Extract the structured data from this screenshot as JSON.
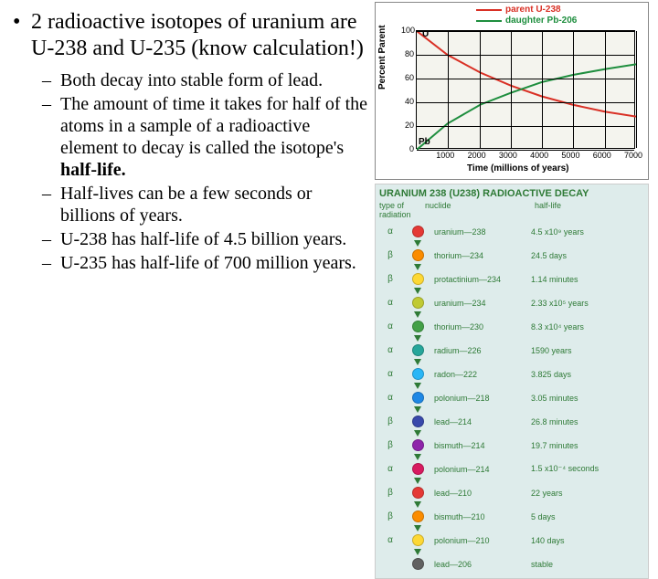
{
  "bullets": {
    "main": "2 radioactive isotopes of uranium are U-238 and U-235 (know calculation!)",
    "subs": [
      "Both decay into stable form of lead.",
      "The amount of time it takes for half of the atoms in a sample of a radioactive element to decay is called the isotope's ",
      "Half-lives can be a few seconds or billions of years.",
      "U-238 has half-life of 4.5 billion years.",
      "U-235 has half-life of 700 million years."
    ],
    "halflife_bold": "half-life."
  },
  "chart": {
    "type": "line",
    "legend": [
      {
        "label": "parent U-238",
        "color": "#d93025"
      },
      {
        "label": "daughter Pb-206",
        "color": "#1e8e3e"
      }
    ],
    "ylabel": "Percent Parent",
    "xlabel": "Time (millions of years)",
    "ylim": [
      0,
      100
    ],
    "yticks": [
      0,
      20,
      40,
      60,
      80,
      100
    ],
    "xlim": [
      0,
      7000
    ],
    "xticks": [
      1000,
      2000,
      3000,
      4000,
      5000,
      6000,
      7000
    ],
    "parent_series": {
      "color": "#d93025",
      "points_pct": [
        [
          0,
          0
        ],
        [
          14,
          20
        ],
        [
          29,
          35
        ],
        [
          43,
          46
        ],
        [
          57,
          55
        ],
        [
          71,
          62
        ],
        [
          86,
          68
        ],
        [
          100,
          72
        ]
      ]
    },
    "daughter_series": {
      "color": "#1e8e3e",
      "points_pct": [
        [
          0,
          100
        ],
        [
          14,
          78
        ],
        [
          29,
          62
        ],
        [
          43,
          52
        ],
        [
          57,
          43
        ],
        [
          71,
          37
        ],
        [
          86,
          32
        ],
        [
          100,
          28
        ]
      ]
    },
    "point_labels": {
      "U": "U",
      "Pb": "Pb"
    },
    "background_color": "#f4f4ee",
    "grid_color": "#000000",
    "label_fontsize": 10,
    "tick_fontsize": 9
  },
  "decay": {
    "title": "URANIUM 238 (U238) RADIOACTIVE DECAY",
    "headers": {
      "c1": "type of radiation",
      "c2": "nuclide",
      "c3": "half-life"
    },
    "rows": [
      {
        "rad": "α",
        "color": "#e53935",
        "nuclide": "uranium—238",
        "half": "4.5 x10⁹ years"
      },
      {
        "rad": "β",
        "color": "#fb8c00",
        "nuclide": "thorium—234",
        "half": "24.5 days"
      },
      {
        "rad": "β",
        "color": "#fdd835",
        "nuclide": "protactinium—234",
        "half": "1.14 minutes"
      },
      {
        "rad": "α",
        "color": "#c0ca33",
        "nuclide": "uranium—234",
        "half": "2.33 x10⁵ years"
      },
      {
        "rad": "α",
        "color": "#43a047",
        "nuclide": "thorium—230",
        "half": "8.3 x10⁴ years"
      },
      {
        "rad": "α",
        "color": "#26a69a",
        "nuclide": "radium—226",
        "half": "1590 years"
      },
      {
        "rad": "α",
        "color": "#29b6f6",
        "nuclide": "radon—222",
        "half": "3.825 days"
      },
      {
        "rad": "α",
        "color": "#1e88e5",
        "nuclide": "polonium—218",
        "half": "3.05 minutes"
      },
      {
        "rad": "β",
        "color": "#3949ab",
        "nuclide": "lead—214",
        "half": "26.8 minutes"
      },
      {
        "rad": "β",
        "color": "#8e24aa",
        "nuclide": "bismuth—214",
        "half": "19.7 minutes"
      },
      {
        "rad": "α",
        "color": "#d81b60",
        "nuclide": "polonium—214",
        "half": "1.5 x10⁻⁴ seconds"
      },
      {
        "rad": "β",
        "color": "#e53935",
        "nuclide": "lead—210",
        "half": "22 years"
      },
      {
        "rad": "β",
        "color": "#fb8c00",
        "nuclide": "bismuth—210",
        "half": "5 days"
      },
      {
        "rad": "α",
        "color": "#fdd835",
        "nuclide": "polonium—210",
        "half": "140 days"
      },
      {
        "rad": "",
        "color": "#616161",
        "nuclide": "lead—206",
        "half": "stable"
      }
    ],
    "background_color": "#deeceb",
    "text_color": "#2e7a36"
  }
}
